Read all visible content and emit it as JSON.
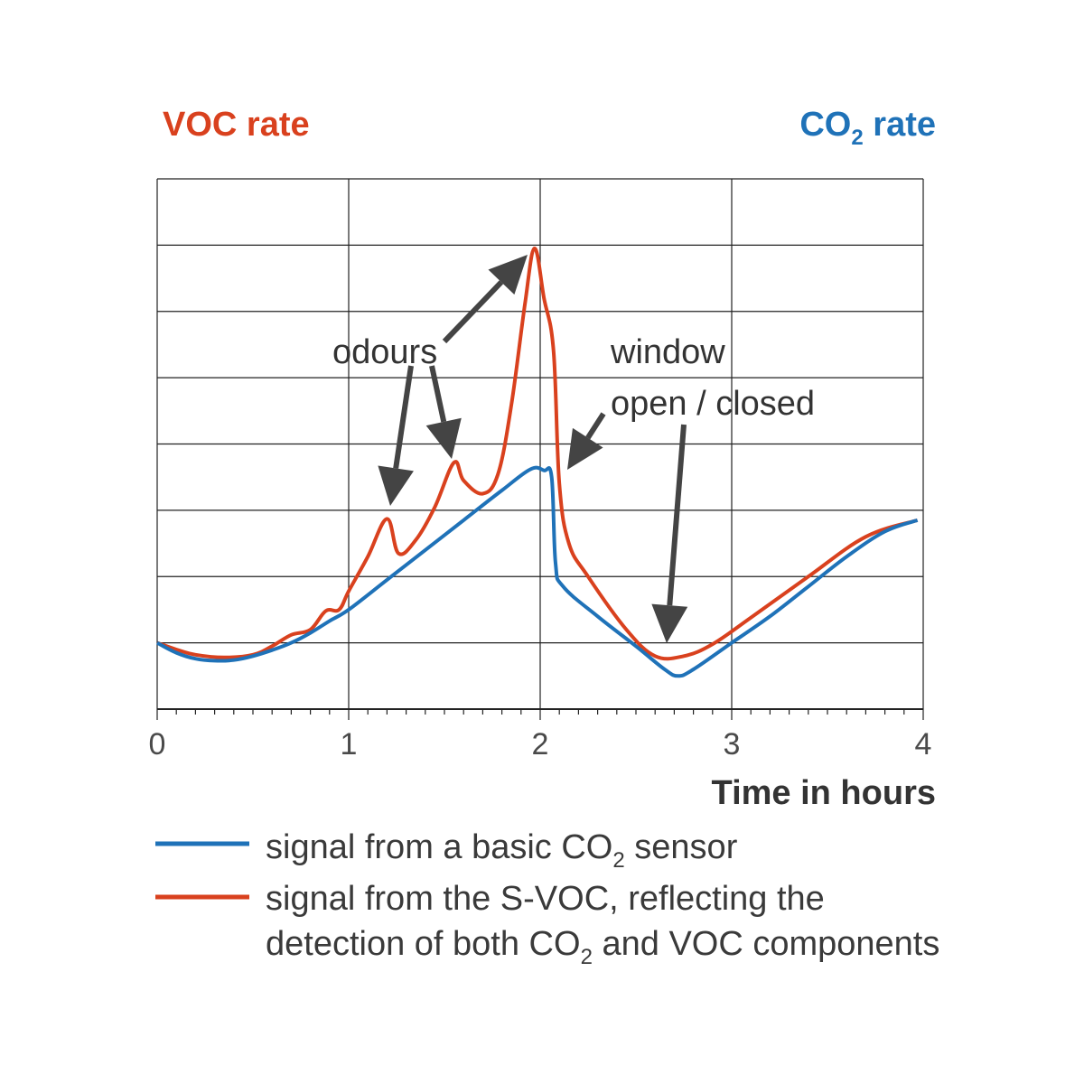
{
  "colors": {
    "voc": "#d9411e",
    "co2": "#1f72b8",
    "grid": "#222222",
    "arrow": "#444444"
  },
  "chart_data": {
    "type": "line",
    "title": "",
    "ylabel_left": "VOC rate",
    "ylabel_right": {
      "base": "CO",
      "sub": "2",
      "suffix": " rate"
    },
    "xlabel": "Time in hours",
    "xlim": [
      0,
      4
    ],
    "ylim": [
      0,
      8
    ],
    "x_ticks": [
      "0",
      "1",
      "2",
      "3",
      "4"
    ],
    "grid": true,
    "series": [
      {
        "name": "signal from a basic CO2 sensor",
        "color": "co2",
        "x": [
          0,
          0.1,
          0.2,
          0.3,
          0.4,
          0.5,
          0.6,
          0.7,
          0.8,
          0.9,
          1.0,
          1.2,
          1.4,
          1.6,
          1.8,
          1.95,
          2.02,
          2.06,
          2.08,
          2.12,
          2.3,
          2.5,
          2.65,
          2.72,
          2.8,
          3.0,
          3.2,
          3.4,
          3.6,
          3.8,
          3.97
        ],
        "y": [
          1.0,
          0.85,
          0.76,
          0.73,
          0.74,
          0.8,
          0.89,
          1.0,
          1.15,
          1.33,
          1.5,
          1.95,
          2.4,
          2.85,
          3.3,
          3.62,
          3.6,
          3.5,
          2.2,
          1.85,
          1.4,
          0.95,
          0.6,
          0.5,
          0.6,
          1.0,
          1.4,
          1.85,
          2.3,
          2.68,
          2.85
        ]
      },
      {
        "name": "signal from the S-VOC, reflecting the detection of both CO2 and VOC components",
        "color": "voc",
        "x": [
          0,
          0.1,
          0.2,
          0.35,
          0.5,
          0.6,
          0.7,
          0.8,
          0.88,
          0.95,
          1.0,
          1.1,
          1.2,
          1.26,
          1.35,
          1.45,
          1.55,
          1.6,
          1.7,
          1.78,
          1.85,
          1.92,
          1.97,
          2.02,
          2.07,
          2.1,
          2.15,
          2.25,
          2.45,
          2.6,
          2.75,
          2.9,
          3.1,
          3.4,
          3.7,
          3.97
        ],
        "y": [
          1.0,
          0.9,
          0.82,
          0.78,
          0.82,
          0.95,
          1.12,
          1.2,
          1.48,
          1.5,
          1.78,
          2.3,
          2.87,
          2.35,
          2.55,
          3.05,
          3.72,
          3.45,
          3.25,
          3.55,
          4.6,
          6.1,
          6.95,
          6.2,
          5.4,
          3.4,
          2.5,
          2.0,
          1.2,
          0.8,
          0.8,
          0.98,
          1.38,
          2.0,
          2.6,
          2.85
        ]
      }
    ],
    "annotations": {
      "odours": "odours",
      "window_line1": "window",
      "window_line2": "open / closed"
    },
    "legend": [
      {
        "color": "co2",
        "parts": [
          {
            "t": "signal from a basic CO"
          },
          {
            "t": "2",
            "sub": true
          },
          {
            "t": " sensor"
          }
        ]
      },
      {
        "color": "voc",
        "parts": [
          {
            "t": "signal from the S-VOC, reflecting the"
          }
        ]
      },
      {
        "color": "",
        "parts": [
          {
            "t": "detection of both CO"
          },
          {
            "t": "2",
            "sub": true
          },
          {
            "t": " and VOC components"
          }
        ]
      }
    ]
  }
}
